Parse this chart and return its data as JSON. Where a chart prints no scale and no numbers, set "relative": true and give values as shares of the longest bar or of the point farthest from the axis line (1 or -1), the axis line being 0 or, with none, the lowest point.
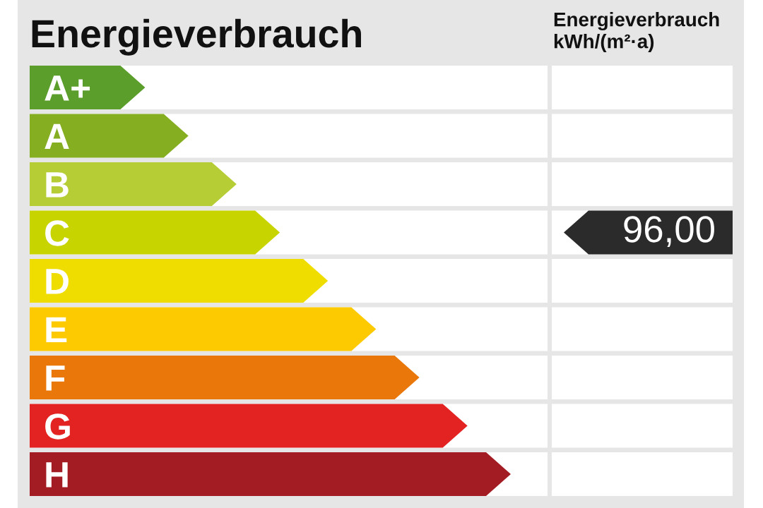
{
  "chart_data": [
    {
      "type": "bar",
      "title": "Energieverbrauch",
      "orientation": "horizontal",
      "relative": true,
      "categories": [
        "A+",
        "A",
        "B",
        "C",
        "D",
        "E",
        "F",
        "G",
        "H"
      ],
      "values": [
        0.24,
        0.33,
        0.43,
        0.52,
        0.62,
        0.72,
        0.81,
        0.91,
        1
      ],
      "colors": [
        "#5b9e2b",
        "#86ae21",
        "#b6cd36",
        "#c8d400",
        "#efdd00",
        "#fdc900",
        "#e9770a",
        "#e22322",
        "#a31b23"
      ]
    },
    {
      "type": "other",
      "title": "Energieverbrauch\nkWh/(m²·a)",
      "categories": [
        null,
        null,
        null,
        null,
        null,
        null,
        null,
        null,
        null
      ],
      "values": [
        null,
        null,
        null,
        96,
        null,
        null,
        null,
        null,
        null
      ],
      "value_labels": [
        null,
        null,
        null,
        "96,00",
        null,
        null,
        null,
        null,
        null
      ],
      "color": "#2b2b2b"
    }
  ]
}
